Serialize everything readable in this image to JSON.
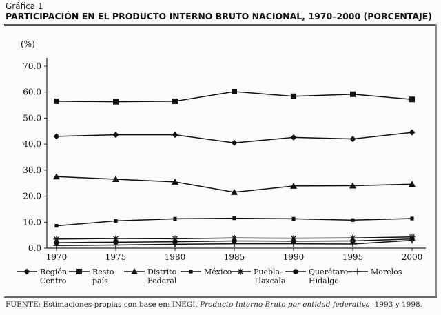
{
  "header": {
    "caption": "Gráfica 1",
    "title": "PARTICIPACIÓN EN EL PRODUCTO INTERNO BRUTO NACIONAL, 1970–2000 (PORCENTAJE)"
  },
  "source": {
    "prefix": "FUENTE: Estimaciones propias con base en: INEGI,",
    "italic": "Producto Interno Bruto por entidad federativa",
    "suffix": ", 1993 y 1998."
  },
  "chart_data": {
    "type": "line",
    "title": "PARTICIPACIÓN EN EL PRODUCTO INTERNO BRUTO NACIONAL, 1970–2000 (PORCENTAJE)",
    "ylabel": "(%)",
    "xlabel": "",
    "x": [
      "1970",
      "1975",
      "1980",
      "1985",
      "1990",
      "1995",
      "2000"
    ],
    "ylim": [
      0,
      70
    ],
    "yticks": [
      "0.0",
      "10.0",
      "20.0",
      "30.0",
      "40.0",
      "50.0",
      "60.0",
      "70.0"
    ],
    "grid": false,
    "legend_position": "bottom",
    "series": [
      {
        "name": "Región Centro",
        "label_lines": [
          "Región",
          "Centro"
        ],
        "marker": "diamond",
        "values": [
          43.0,
          43.6,
          43.6,
          40.5,
          42.6,
          42.0,
          44.5
        ]
      },
      {
        "name": "Resto país",
        "label_lines": [
          "Resto",
          "país"
        ],
        "marker": "square",
        "values": [
          56.5,
          56.3,
          56.5,
          60.2,
          58.4,
          59.2,
          57.2
        ]
      },
      {
        "name": "Distrito Federal",
        "label_lines": [
          "Distrito",
          "Federal"
        ],
        "marker": "triangle",
        "values": [
          27.5,
          26.5,
          25.5,
          21.5,
          23.9,
          24.0,
          24.6
        ]
      },
      {
        "name": "México",
        "label_lines": [
          "México"
        ],
        "marker": "smallsquare",
        "values": [
          8.6,
          10.5,
          11.3,
          11.5,
          11.3,
          10.8,
          11.4
        ]
      },
      {
        "name": "Puebla–Tlaxcala",
        "label_lines": [
          "Puebla–",
          "Tlaxcala"
        ],
        "marker": "asterisk",
        "values": [
          3.5,
          3.7,
          3.6,
          3.9,
          3.8,
          3.9,
          4.3
        ]
      },
      {
        "name": "Querétaro–Hidalgo",
        "label_lines": [
          "Querétaro–",
          "Hidalgo"
        ],
        "marker": "circle",
        "values": [
          2.1,
          2.3,
          2.5,
          2.8,
          2.7,
          2.8,
          3.5
        ]
      },
      {
        "name": "Morelos",
        "label_lines": [
          "Morelos"
        ],
        "marker": "plus",
        "values": [
          1.0,
          1.2,
          1.5,
          1.7,
          1.7,
          1.6,
          3.0
        ]
      }
    ]
  }
}
